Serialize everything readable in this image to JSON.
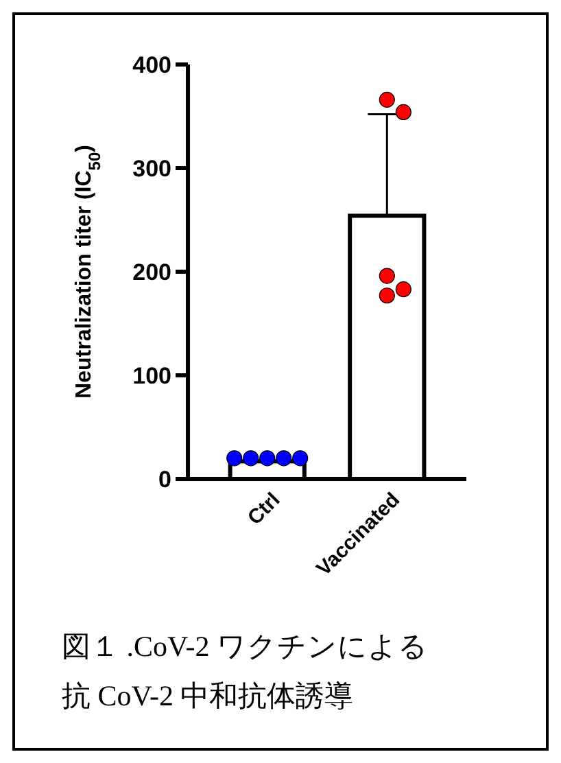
{
  "chart_data": {
    "type": "bar",
    "ylabel": "Neutralization titer (IC$_{50}$)",
    "categories": [
      "Ctrl",
      "Vaccinated"
    ],
    "series": [
      {
        "color": "#ffffff",
        "values": [
          17,
          254
        ],
        "errors": [
          null,
          [
            254,
            352
          ]
        ]
      },
      {
        "type": "scatter",
        "x": [
          "Ctrl",
          "Ctrl",
          "Ctrl",
          "Ctrl",
          "Ctrl",
          "Vaccinated",
          "Vaccinated",
          "Vaccinated",
          "Vaccinated",
          "Vaccinated"
        ],
        "values": [
          20,
          20,
          20,
          20,
          20,
          366,
          354,
          196,
          183,
          177
        ],
        "colors": [
          "#0000ff",
          "#0000ff",
          "#0000ff",
          "#0000ff",
          "#0000ff",
          "#ff0000",
          "#ff0000",
          "#ff0000",
          "#ff0000",
          "#ff0000"
        ]
      }
    ],
    "ylim": [
      0,
      400
    ],
    "yticks": [
      0,
      100,
      200,
      300,
      400
    ],
    "marker": "circle",
    "annotations": [
      "図１ .CoV-2 ワクチンによる",
      "抗 CoV-2 中和抗体誘導"
    ]
  }
}
